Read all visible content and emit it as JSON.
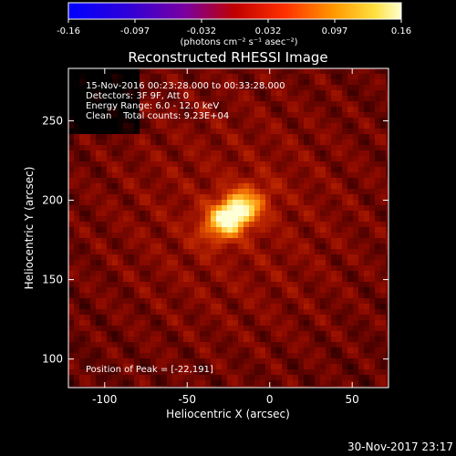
{
  "chart_data": {
    "type": "heatmap",
    "title": "Reconstructed RHESSI Image",
    "xlabel": "Heliocentric X (arcsec)",
    "ylabel": "Heliocentric Y (arcsec)",
    "xlim": [
      -122,
      72
    ],
    "ylim": [
      82,
      283
    ],
    "x_ticks": [
      -100,
      -50,
      0,
      50
    ],
    "y_ticks": [
      100,
      150,
      200,
      250
    ],
    "colorbar": {
      "ticks": [
        "-0.16",
        "-0.097",
        "-0.032",
        "0.032",
        "0.097",
        "0.16"
      ],
      "range": [
        -0.16,
        0.16
      ],
      "unit_label": "(photons cm⁻² s⁻¹ asec⁻²)"
    },
    "annotations": [
      "15-Nov-2016 00:23:28.000 to 00:33:28.000",
      "Detectors: 3F 9F, Att 0",
      "Energy Range: 6.0 - 12.0 keV",
      "Clean    Total counts: 9.23E+04"
    ],
    "peak_text": "Position of Peak = [-22,191]",
    "peak": {
      "x": -22,
      "y": 191,
      "value": 0.16
    },
    "background_level": 0.03
  },
  "footer": {
    "timestamp": "30-Nov-2017 23:17"
  }
}
